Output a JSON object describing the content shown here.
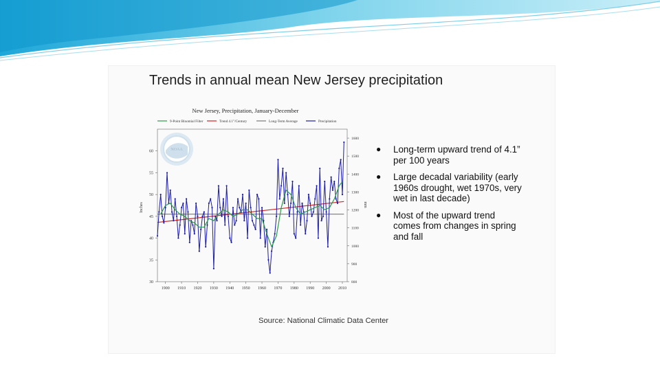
{
  "slide": {
    "title": "Trends in annual mean New Jersey precipitation",
    "source": "Source: National Climatic Data Center",
    "bullets": [
      "Long-term upward trend of 4.1” per 100 years",
      "Large decadal variability (early 1960s drought, wet 1970s, very wet in last decade)",
      "Most of the upward trend comes from changes in spring and fall"
    ],
    "colors": {
      "accent": "#5bc0de",
      "panel": "#fafafa"
    }
  },
  "chart_data": {
    "type": "line",
    "title": "New Jersey, Precipitation, January-December",
    "ylabel": "Inches",
    "y2label": "mm",
    "ylim": [
      30,
      65
    ],
    "y2lim": [
      800,
      1650
    ],
    "xlim": [
      1895,
      2013
    ],
    "xticks": [
      1900,
      1910,
      1920,
      1930,
      1940,
      1950,
      1960,
      1970,
      1980,
      1990,
      2000,
      2010
    ],
    "yticks": [
      30,
      35,
      40,
      45,
      50,
      55,
      60
    ],
    "y2ticks": [
      800,
      900,
      1000,
      1100,
      1200,
      1300,
      1400,
      1500,
      1600
    ],
    "grid": false,
    "legend_position": "top",
    "legend": [
      "9-Point Binomial Filter",
      "Trend 4.1\"/Century",
      "Long-Term Average",
      "Precipitation"
    ],
    "series": [
      {
        "name": "Precipitation",
        "color": "#1a1aa8",
        "x": [
          1895,
          1896,
          1897,
          1898,
          1899,
          1900,
          1901,
          1902,
          1903,
          1904,
          1905,
          1906,
          1907,
          1908,
          1909,
          1910,
          1911,
          1912,
          1913,
          1914,
          1915,
          1916,
          1917,
          1918,
          1919,
          1920,
          1921,
          1922,
          1923,
          1924,
          1925,
          1926,
          1927,
          1928,
          1929,
          1930,
          1931,
          1932,
          1933,
          1934,
          1935,
          1936,
          1937,
          1938,
          1939,
          1940,
          1941,
          1942,
          1943,
          1944,
          1945,
          1946,
          1947,
          1948,
          1949,
          1950,
          1951,
          1952,
          1953,
          1954,
          1955,
          1956,
          1957,
          1958,
          1959,
          1960,
          1961,
          1962,
          1963,
          1964,
          1965,
          1966,
          1967,
          1968,
          1969,
          1970,
          1971,
          1972,
          1973,
          1974,
          1975,
          1976,
          1977,
          1978,
          1979,
          1980,
          1981,
          1982,
          1983,
          1984,
          1985,
          1986,
          1987,
          1988,
          1989,
          1990,
          1991,
          1992,
          1993,
          1994,
          1995,
          1996,
          1997,
          1998,
          1999,
          2000,
          2001,
          2002,
          2003,
          2004,
          2005,
          2006,
          2007,
          2008,
          2009,
          2010,
          2011
        ],
        "y": [
          40.5,
          46,
          50,
          45,
          43.5,
          47,
          55,
          48,
          51,
          46,
          44,
          49,
          45,
          40,
          43,
          47,
          48,
          41,
          49,
          46,
          39,
          44,
          43,
          41,
          48,
          45,
          37,
          42,
          45,
          46,
          38,
          43,
          48,
          49,
          47,
          33,
          45,
          44,
          52,
          47,
          45,
          49,
          43,
          52,
          45,
          40,
          39,
          47,
          43,
          44,
          49,
          47,
          46,
          50,
          44,
          48,
          40,
          51,
          47,
          44,
          43,
          42,
          50,
          49,
          40,
          47,
          44,
          38,
          42,
          35,
          32,
          37,
          39,
          41,
          45,
          58,
          49,
          52,
          56,
          48,
          55,
          50,
          45,
          48,
          53,
          41,
          40,
          46,
          52,
          43,
          48,
          46,
          41,
          44,
          50,
          48,
          45,
          46,
          49,
          52,
          40,
          56,
          44,
          45,
          53,
          46,
          38,
          49,
          54,
          51,
          53,
          49,
          48,
          56,
          58,
          50,
          62
        ]
      },
      {
        "name": "9-Point Binomial Filter",
        "color": "#2a9a4a",
        "x": [
          1897,
          1900,
          1903,
          1906,
          1909,
          1912,
          1915,
          1918,
          1921,
          1924,
          1927,
          1930,
          1933,
          1936,
          1939,
          1942,
          1945,
          1948,
          1951,
          1954,
          1957,
          1960,
          1963,
          1966,
          1969,
          1972,
          1975,
          1978,
          1981,
          1984,
          1987,
          1990,
          1993,
          1996,
          1999,
          2002,
          2005,
          2008,
          2010
        ],
        "y": [
          45.5,
          47.5,
          48,
          46.5,
          45.5,
          45,
          44,
          43.5,
          42.5,
          42.5,
          44.5,
          44,
          45.5,
          46.5,
          46,
          45,
          45.5,
          46.5,
          46.5,
          45.5,
          44.5,
          44.5,
          41,
          38,
          40.5,
          47,
          51,
          50,
          47,
          45.5,
          46,
          46.5,
          47,
          47.5,
          46.5,
          47,
          49,
          52,
          53
        ]
      },
      {
        "name": "Trend 4.1\"/Century",
        "color": "#d42020",
        "x": [
          1895,
          2011
        ],
        "y": [
          43.6,
          48.4
        ]
      },
      {
        "name": "Long-Term Average",
        "color": "#777777",
        "x": [
          1895,
          2011
        ],
        "y": [
          45.5,
          45.5
        ]
      }
    ]
  }
}
